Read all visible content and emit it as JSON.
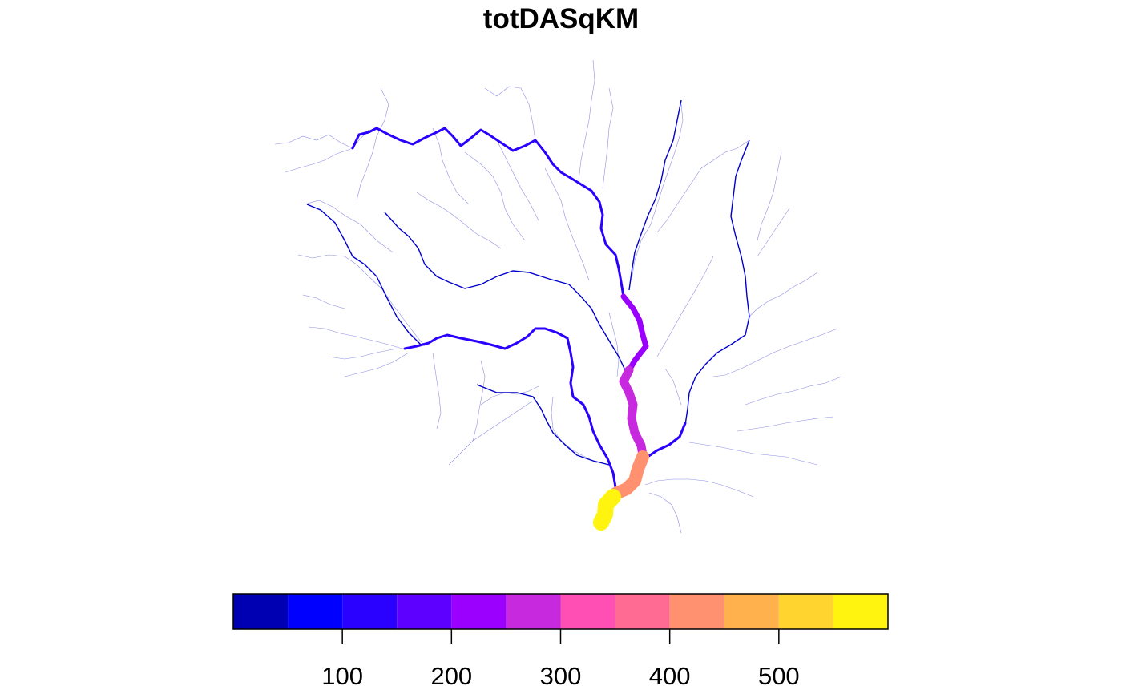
{
  "title": "totDASqKM",
  "legend": {
    "breaks": [
      0,
      50,
      100,
      150,
      200,
      250,
      300,
      350,
      400,
      450,
      500,
      550,
      600
    ],
    "colors": [
      "#0000B3",
      "#0000FF",
      "#2A00FF",
      "#5E00FF",
      "#9B00FF",
      "#C729DE",
      "#FF4FB4",
      "#FF6B93",
      "#FF9171",
      "#FFB14E",
      "#FFD42F",
      "#FFF40F"
    ],
    "tick_values": [
      100,
      200,
      300,
      400,
      500
    ],
    "tick_labels": [
      "100",
      "200",
      "300",
      "400",
      "500"
    ]
  },
  "rivers": {
    "mainstem_colors": {
      "headwater": "#2A00FF",
      "mid_upper": "#9B00FF",
      "mid": "#C729DE",
      "lower": "#FF9171",
      "outlet": "#FFF40F",
      "tributary": "#0000FF",
      "minor": "#0000B3"
    }
  }
}
